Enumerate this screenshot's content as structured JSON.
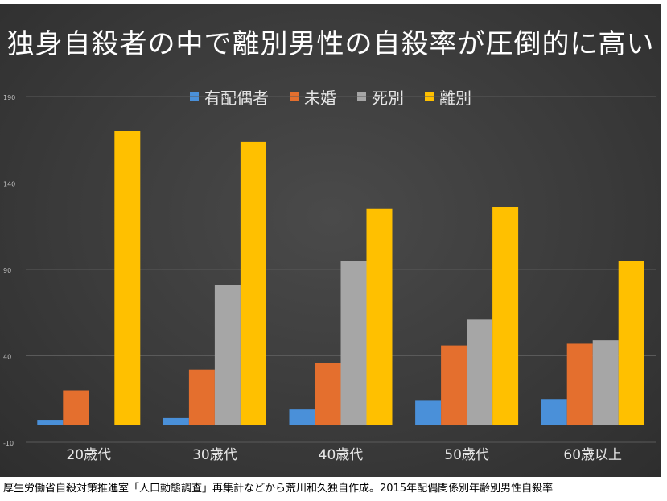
{
  "chart_data": {
    "type": "bar",
    "title": "独身自殺者の中で離別男性の自殺率が圧倒的に高い",
    "categories": [
      "20歳代",
      "30歳代",
      "40歳代",
      "50歳代",
      "60歳以上"
    ],
    "series": [
      {
        "name": "有配偶者",
        "color": "#4a90d9",
        "values": [
          3,
          4,
          9,
          14,
          15
        ]
      },
      {
        "name": "未婚",
        "color": "#e46f2e",
        "values": [
          20,
          32,
          36,
          46,
          47
        ]
      },
      {
        "name": "死別",
        "color": "#a6a6a6",
        "values": [
          null,
          81,
          95,
          61,
          49
        ]
      },
      {
        "name": "離別",
        "color": "#ffc000",
        "values": [
          170,
          164,
          125,
          126,
          95
        ]
      }
    ],
    "ylim": [
      -10,
      190
    ],
    "yticks": [
      -10,
      40,
      90,
      140,
      190
    ],
    "grid": true,
    "legend_position": "top"
  },
  "footnote": "厚生労働省自殺対策推進室「人口動態調査」再集計などから荒川和久独自作成。2015年配偶関係別年齢別男性自殺率"
}
